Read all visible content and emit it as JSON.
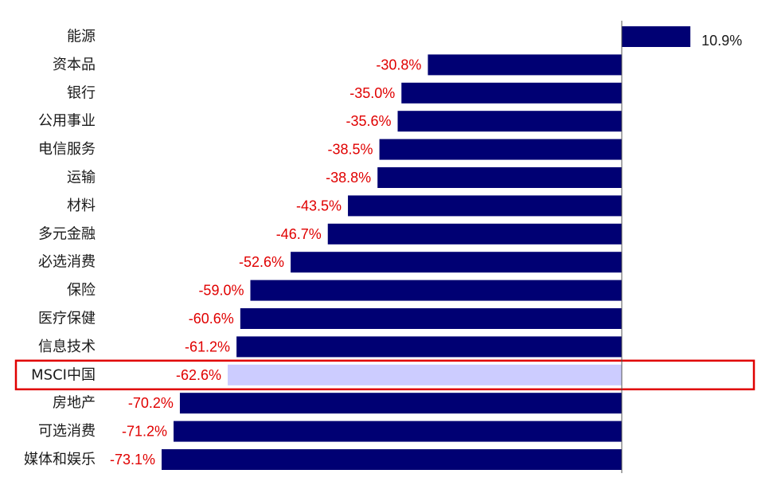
{
  "chart_data": {
    "type": "bar",
    "orientation": "horizontal",
    "categories": [
      "能源",
      "资本品",
      "银行",
      "公用事业",
      "电信服务",
      "运输",
      "材料",
      "多元金融",
      "必选消费",
      "保险",
      "医疗保健",
      "信息技术",
      "MSCI中国",
      "房地产",
      "可选消费",
      "媒体和娱乐"
    ],
    "values": [
      10.9,
      -30.8,
      -35.0,
      -35.6,
      -38.5,
      -38.8,
      -43.5,
      -46.7,
      -52.6,
      -59.0,
      -60.6,
      -61.2,
      -62.6,
      -70.2,
      -71.2,
      -73.1
    ],
    "value_labels": [
      "10.9%",
      "-30.8%",
      "-35.0%",
      "-35.6%",
      "-38.5%",
      "-38.8%",
      "-43.5%",
      "-46.7%",
      "-52.6%",
      "-59.0%",
      "-60.6%",
      "-61.2%",
      "-62.6%",
      "-70.2%",
      "-71.2%",
      "-73.1%"
    ],
    "highlighted_category": "MSCI中国",
    "xlim": [
      -73.1,
      10.9
    ],
    "grid": false,
    "legend": "none",
    "colors": {
      "bar": "#000073",
      "highlight_bar": "#ccccff",
      "highlight_box": "#e00000",
      "negative_label": "#e00000",
      "positive_label": "#1a1a1a",
      "axis": "#555555"
    }
  }
}
